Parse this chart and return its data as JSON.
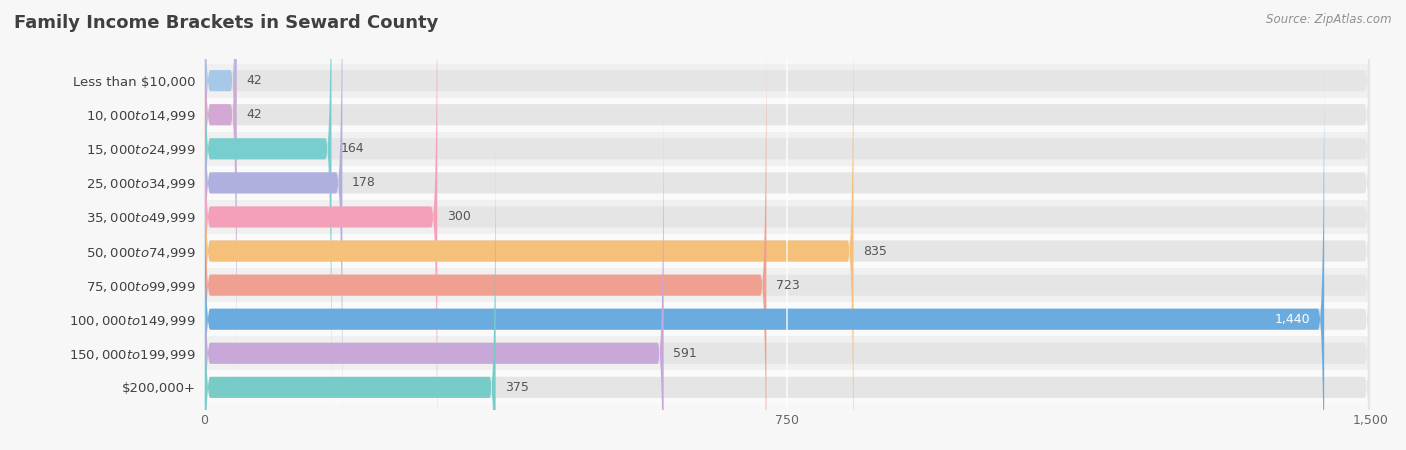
{
  "title": "Family Income Brackets in Seward County",
  "source": "Source: ZipAtlas.com",
  "categories": [
    "Less than $10,000",
    "$10,000 to $14,999",
    "$15,000 to $24,999",
    "$25,000 to $34,999",
    "$35,000 to $49,999",
    "$50,000 to $74,999",
    "$75,000 to $99,999",
    "$100,000 to $149,999",
    "$150,000 to $199,999",
    "$200,000+"
  ],
  "values": [
    42,
    42,
    164,
    178,
    300,
    835,
    723,
    1440,
    591,
    375
  ],
  "bar_colors": [
    "#a8c8e8",
    "#d4a8d4",
    "#78cece",
    "#b0b0e0",
    "#f4a0b8",
    "#f4c07a",
    "#f0a090",
    "#6aace0",
    "#c8a8d8",
    "#78ccc8"
  ],
  "bg_color": "#f7f7f7",
  "bar_bg_color": "#e5e5e5",
  "row_bg_even": "#f0f0f0",
  "row_bg_odd": "#fafafa",
  "xlim": [
    0,
    1500
  ],
  "xticks": [
    0,
    750,
    1500
  ],
  "value_color_default": "#555555",
  "value_color_inside": "#ffffff",
  "title_color": "#404040",
  "label_color": "#404040",
  "source_color": "#909090",
  "bar_height": 0.62,
  "label_fontsize": 9.5,
  "value_fontsize": 9.0,
  "title_fontsize": 13
}
